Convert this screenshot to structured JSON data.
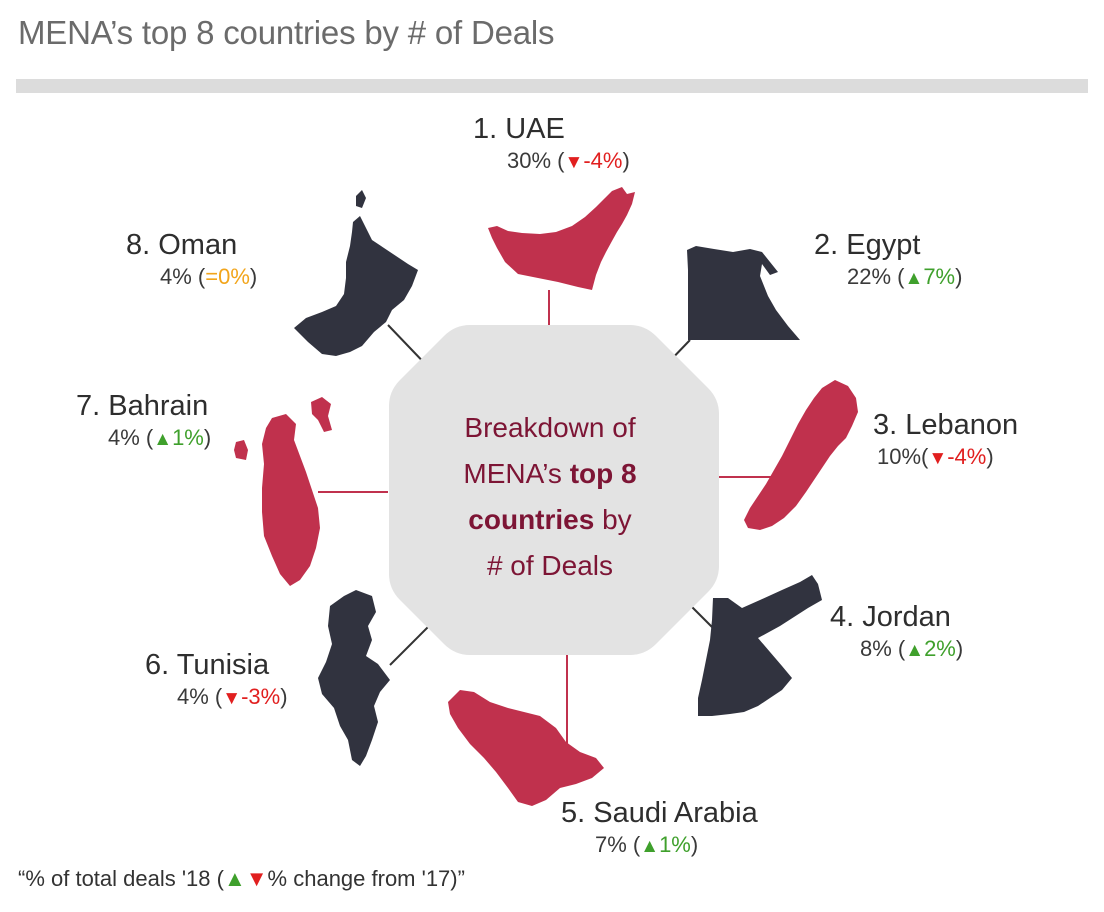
{
  "title": "MENA’s top 8 countries by # of Deals",
  "center": {
    "line1": "Breakdown of",
    "line2_pre": "MENA’s ",
    "line2_bold": "top 8",
    "line3_bold": "countries",
    "line3_post": " by",
    "line4": "# of Deals"
  },
  "countries": [
    {
      "rank_name": "1. UAE",
      "share": "30%",
      "open": " (",
      "arrow": "▼",
      "change": "-4%",
      "close": ")",
      "trend": "down",
      "map_color": "#c0314d",
      "icon": "uae-map-icon"
    },
    {
      "rank_name": "2. Egypt",
      "share": "22%",
      "open": " (",
      "arrow": "▲",
      "change": "7%",
      "close": ")",
      "trend": "up",
      "map_color": "#31333f",
      "icon": "egypt-map-icon"
    },
    {
      "rank_name": "3. Lebanon",
      "share": "10%",
      "open": "(",
      "arrow": "▼",
      "change": "-4%",
      "close": ")",
      "trend": "down",
      "map_color": "#c0314d",
      "icon": "lebanon-map-icon"
    },
    {
      "rank_name": "4. Jordan",
      "share": "8%",
      "open": " (",
      "arrow": "▲",
      "change": "2%",
      "close": ")",
      "trend": "up",
      "map_color": "#31333f",
      "icon": "jordan-map-icon"
    },
    {
      "rank_name": "5. Saudi Arabia",
      "share": "7%",
      "open": " (",
      "arrow": "▲",
      "change": "1%",
      "close": ")",
      "trend": "up",
      "map_color": "#c0314d",
      "icon": "saudi-arabia-map-icon"
    },
    {
      "rank_name": "6. Tunisia",
      "share": "4%",
      "open": " (",
      "arrow": "▼",
      "change": "-3%",
      "close": ")",
      "trend": "down",
      "map_color": "#31333f",
      "icon": "tunisia-map-icon"
    },
    {
      "rank_name": "7. Bahrain",
      "share": "4%",
      "open": " (",
      "arrow": "▲",
      "change": "1%",
      "close": ")",
      "trend": "up",
      "map_color": "#c0314d",
      "icon": "bahrain-map-icon"
    },
    {
      "rank_name": "8. Oman",
      "share": "4%",
      "open": " (",
      "arrow": "",
      "change": "=0%",
      "close": ")",
      "trend": "flat",
      "map_color": "#31333f",
      "icon": "oman-map-icon"
    }
  ],
  "footnote": {
    "pre": "“% of total deals '18 (",
    "up": "▲",
    "down": "▼",
    "post": "% change from '17)”"
  },
  "colors": {
    "up": "#3fa02c",
    "down": "#e11f1f",
    "flat": "#f2a51b",
    "center_bg": "#e3e3e3",
    "accent": "#c0314d",
    "dark": "#31333f"
  }
}
